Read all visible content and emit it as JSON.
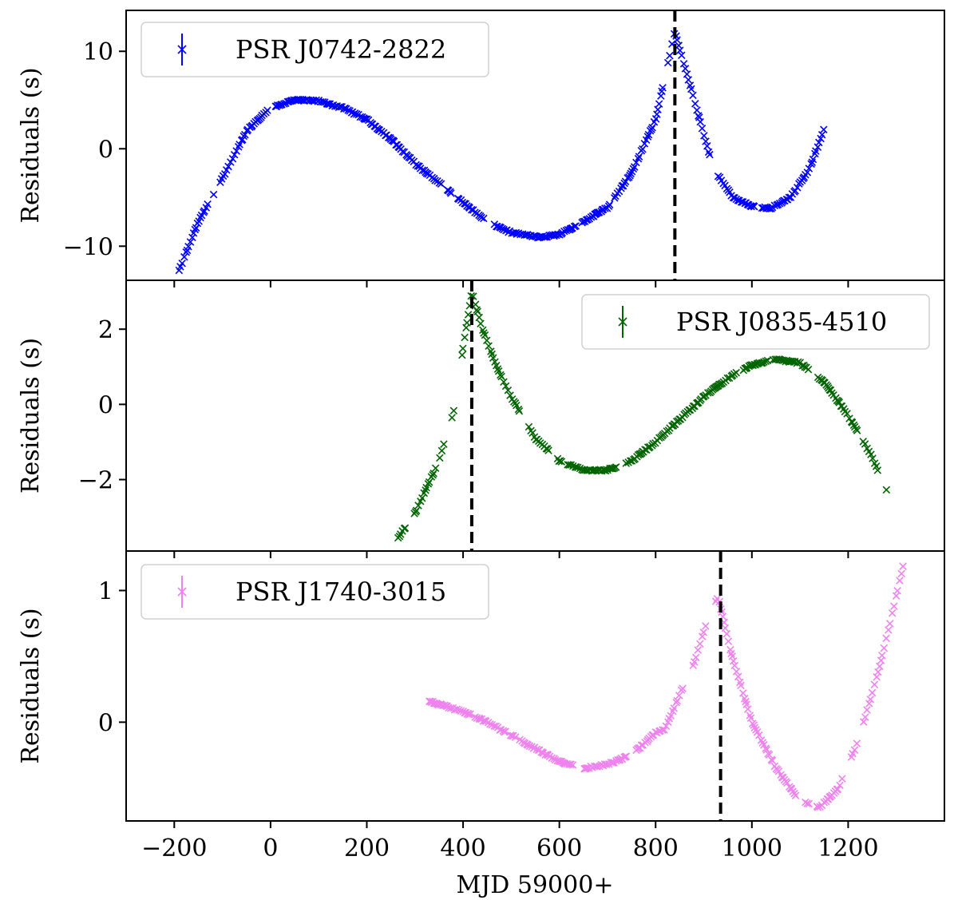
{
  "chart_data": [
    {
      "type": "scatter",
      "name": "PSR J0742-2822",
      "legend": "PSR J0742-2822",
      "legend_loc": "top-left",
      "color": "#0000ff",
      "marker": "x",
      "xlim": [
        -300,
        1400
      ],
      "ylim": [
        -13.5,
        14.2
      ],
      "yticks": [
        10,
        0,
        -10
      ],
      "ytick_labels": [
        "10",
        "0",
        "−10"
      ],
      "ylabel": "Residuals (s)",
      "glitch_mjd": 840,
      "curve": [
        [
          -190,
          -12.5
        ],
        [
          -150,
          -7.5
        ],
        [
          -100,
          -3.0
        ],
        [
          -50,
          1.8
        ],
        [
          0,
          4.2
        ],
        [
          50,
          5.0
        ],
        [
          100,
          4.9
        ],
        [
          150,
          4.2
        ],
        [
          200,
          3.0
        ],
        [
          250,
          1.0
        ],
        [
          300,
          -1.5
        ],
        [
          350,
          -3.5
        ],
        [
          400,
          -5.5
        ],
        [
          450,
          -7.5
        ],
        [
          500,
          -8.6
        ],
        [
          560,
          -9.1
        ],
        [
          600,
          -8.8
        ],
        [
          650,
          -7.5
        ],
        [
          700,
          -6.0
        ],
        [
          750,
          -2.5
        ],
        [
          800,
          3.0
        ],
        [
          840,
          12.0
        ],
        [
          880,
          5.0
        ],
        [
          920,
          -2.0
        ],
        [
          960,
          -5.0
        ],
        [
          1000,
          -5.9
        ],
        [
          1040,
          -6.1
        ],
        [
          1080,
          -5.0
        ],
        [
          1120,
          -2.0
        ],
        [
          1150,
          2.0
        ]
      ]
    },
    {
      "type": "scatter",
      "name": "PSR J0835-4510",
      "legend": "PSR J0835-4510",
      "legend_loc": "top-right",
      "color": "#006400",
      "marker": "x",
      "xlim": [
        -300,
        1400
      ],
      "ylim": [
        -3.9,
        3.3
      ],
      "yticks": [
        2,
        0,
        -2
      ],
      "ytick_labels": [
        "2",
        "0",
        "−2"
      ],
      "ylabel": "Residuals (s)",
      "glitch_mjd": 418,
      "curve": [
        [
          265,
          -3.55
        ],
        [
          300,
          -2.9
        ],
        [
          350,
          -1.5
        ],
        [
          380,
          -0.2
        ],
        [
          400,
          1.5
        ],
        [
          418,
          3.0
        ],
        [
          440,
          2.0
        ],
        [
          470,
          1.0
        ],
        [
          500,
          0.2
        ],
        [
          550,
          -0.9
        ],
        [
          600,
          -1.5
        ],
        [
          650,
          -1.75
        ],
        [
          700,
          -1.75
        ],
        [
          750,
          -1.5
        ],
        [
          800,
          -1.0
        ],
        [
          850,
          -0.4
        ],
        [
          900,
          0.2
        ],
        [
          950,
          0.7
        ],
        [
          1000,
          1.05
        ],
        [
          1050,
          1.2
        ],
        [
          1100,
          1.1
        ],
        [
          1150,
          0.6
        ],
        [
          1200,
          -0.3
        ],
        [
          1250,
          -1.4
        ],
        [
          1280,
          -2.3
        ]
      ]
    },
    {
      "type": "scatter",
      "name": "PSR J1740-3015",
      "legend": "PSR J1740-3015",
      "legend_loc": "top-left",
      "color": "#ee82ee",
      "marker": "x",
      "xlim": [
        -300,
        1400
      ],
      "ylim": [
        -0.75,
        1.3
      ],
      "yticks": [
        1,
        0
      ],
      "ytick_labels": [
        "1",
        "0"
      ],
      "ylabel": "Residuals (s)",
      "xticks": [
        -200,
        0,
        200,
        400,
        600,
        800,
        1000,
        1200
      ],
      "xtick_labels": [
        "−200",
        "0",
        "200",
        "400",
        "600",
        "800",
        "1000",
        "1200"
      ],
      "xlabel": "MJD 59000+",
      "glitch_mjd": 935,
      "curve": [
        [
          330,
          0.16
        ],
        [
          400,
          0.08
        ],
        [
          450,
          0.0
        ],
        [
          500,
          -0.1
        ],
        [
          550,
          -0.2
        ],
        [
          600,
          -0.3
        ],
        [
          650,
          -0.35
        ],
        [
          700,
          -0.32
        ],
        [
          750,
          -0.25
        ],
        [
          800,
          -0.08
        ],
        [
          820,
          -0.05
        ],
        [
          855,
          0.25
        ],
        [
          880,
          0.45
        ],
        [
          910,
          0.8
        ],
        [
          930,
          0.95
        ],
        [
          955,
          0.55
        ],
        [
          975,
          0.3
        ],
        [
          1000,
          0.0
        ],
        [
          1050,
          -0.35
        ],
        [
          1100,
          -0.6
        ],
        [
          1140,
          -0.65
        ],
        [
          1180,
          -0.5
        ],
        [
          1220,
          -0.15
        ],
        [
          1260,
          0.35
        ],
        [
          1290,
          0.8
        ],
        [
          1315,
          1.2
        ]
      ]
    }
  ]
}
